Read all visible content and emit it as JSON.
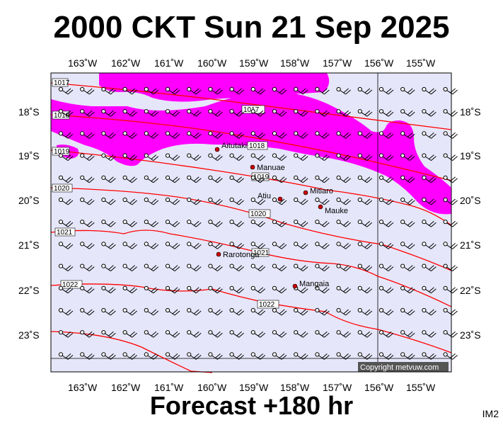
{
  "title": "2000 CKT Sun 21 Sep 2025",
  "footer": "Forecast +180 hr",
  "tag": "IM2",
  "copyright": "Copyright metvuw.com",
  "lon_labels": [
    "163˚W",
    "162˚W",
    "161˚W",
    "160˚W",
    "159˚W",
    "158˚W",
    "157˚W",
    "156˚W",
    "155˚W"
  ],
  "lat_labels": [
    "18˚S",
    "19˚S",
    "20˚S",
    "21˚S",
    "22˚S",
    "23˚S"
  ],
  "places": [
    {
      "name": "Aitutaki"
    },
    {
      "name": "Manuae"
    },
    {
      "name": "Atiu"
    },
    {
      "name": "Mitiaro"
    },
    {
      "name": "Mauke"
    },
    {
      "name": "Rarotonga"
    },
    {
      "name": "Mangaia"
    }
  ],
  "isobars": [
    "1017",
    "1018",
    "1019",
    "1020",
    "1021",
    "1022"
  ],
  "colors": {
    "ocean": "#e6e6fa",
    "rain": "#ff00ff",
    "isobar": "#ff0000",
    "place_dot": "#cc0000"
  }
}
